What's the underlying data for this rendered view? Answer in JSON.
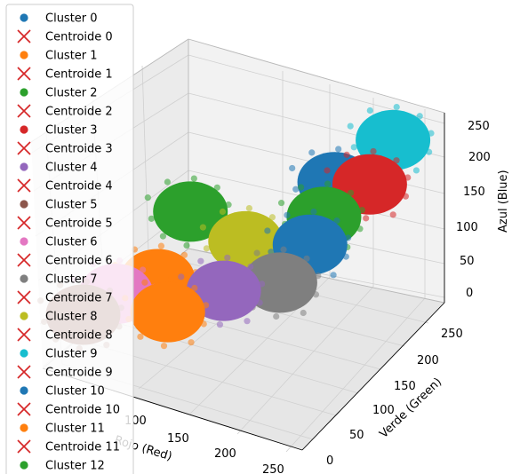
{
  "chart_data": {
    "type": "scatter",
    "projection": "3d",
    "title": "",
    "xlabel": "Rojo (Red)",
    "ylabel": "Verde (Green)",
    "zlabel": "Azul (Blue)",
    "xlim": [
      50,
      260
    ],
    "ylim": [
      0,
      260
    ],
    "zlim": [
      0,
      265
    ],
    "xticks": [
      "100",
      "150",
      "200",
      "250"
    ],
    "yticks": [
      "0",
      "50",
      "100",
      "150",
      "200",
      "250"
    ],
    "zticks": [
      "0",
      "50",
      "100",
      "150",
      "200",
      "250"
    ],
    "grid": true,
    "legend_position": "left",
    "series": [
      {
        "name": "Cluster 0",
        "kind": "points",
        "color": "#1f77b4",
        "centroid": [
          200,
          195,
          200
        ]
      },
      {
        "name": "Centroide  0",
        "kind": "centroid",
        "color": "#d62728"
      },
      {
        "name": "Cluster 1",
        "kind": "points",
        "color": "#ff7f0e",
        "centroid": [
          112,
          70,
          110
        ]
      },
      {
        "name": "Centroide  1",
        "kind": "centroid",
        "color": "#d62728"
      },
      {
        "name": "Cluster 2",
        "kind": "points",
        "color": "#2ca02c",
        "centroid": [
          178,
          225,
          110
        ]
      },
      {
        "name": "Centroide  2",
        "kind": "centroid",
        "color": "#d62728"
      },
      {
        "name": "Cluster 3",
        "kind": "points",
        "color": "#d62728",
        "centroid": [
          215,
          225,
          180
        ]
      },
      {
        "name": "Centroide  3",
        "kind": "centroid",
        "color": "#d62728"
      },
      {
        "name": "Cluster 4",
        "kind": "points",
        "color": "#9467bd",
        "centroid": [
          150,
          105,
          85
        ]
      },
      {
        "name": "Centroide  4",
        "kind": "centroid",
        "color": "#d62728"
      },
      {
        "name": "Cluster 5",
        "kind": "points",
        "color": "#8c564b",
        "centroid": [
          65,
          40,
          55
        ]
      },
      {
        "name": "Centroide  5",
        "kind": "centroid",
        "color": "#d62728"
      },
      {
        "name": "Cluster 6",
        "kind": "points",
        "color": "#e377c2",
        "centroid": [
          85,
          55,
          85
        ]
      },
      {
        "name": "Centroide  6",
        "kind": "centroid",
        "color": "#d62728"
      },
      {
        "name": "Cluster 7",
        "kind": "points",
        "color": "#7f7f7f",
        "centroid": [
          180,
          140,
          85
        ]
      },
      {
        "name": "Centroide  7",
        "kind": "centroid",
        "color": "#d62728"
      },
      {
        "name": "Cluster 8",
        "kind": "points",
        "color": "#bcbd22",
        "centroid": [
          150,
          145,
          125
        ]
      },
      {
        "name": "Centroide  8",
        "kind": "centroid",
        "color": "#d62728"
      },
      {
        "name": "Cluster 9",
        "kind": "points",
        "color": "#17becf",
        "centroid": [
          225,
          245,
          235
        ]
      },
      {
        "name": "Centroide  9",
        "kind": "centroid",
        "color": "#d62728"
      },
      {
        "name": "Cluster 10",
        "kind": "points",
        "color": "#1f77b4",
        "centroid": [
          180,
          195,
          95
        ]
      },
      {
        "name": "Centroide  10",
        "kind": "centroid",
        "color": "#d62728"
      },
      {
        "name": "Cluster 11",
        "kind": "points",
        "color": "#ff7f0e",
        "centroid": [
          118,
          75,
          60
        ]
      },
      {
        "name": "Centroide  11",
        "kind": "centroid",
        "color": "#d62728"
      },
      {
        "name": "Cluster 12",
        "kind": "points",
        "color": "#2ca02c",
        "centroid": [
          112,
          130,
          160
        ]
      }
    ]
  }
}
